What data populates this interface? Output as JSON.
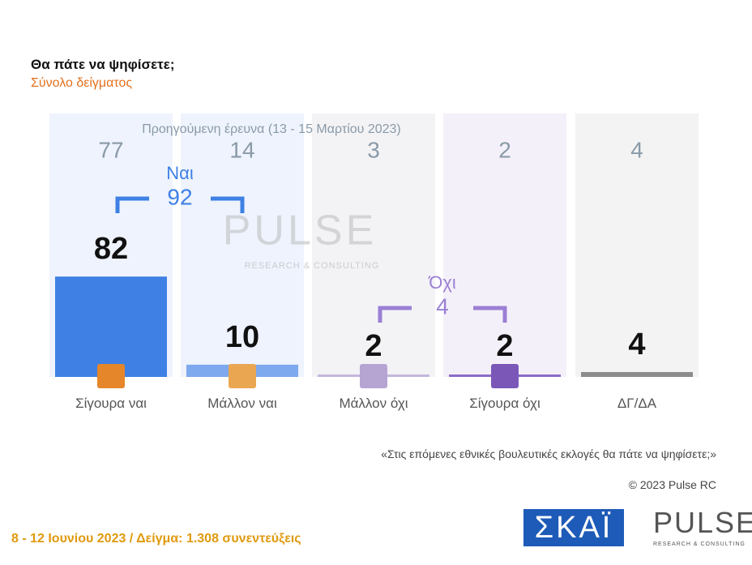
{
  "chart_data": {
    "type": "bar",
    "title": "Θα πάτε να ψηφίσετε;",
    "subtitle": "Σύνολο δείγματος",
    "categories": [
      "Σίγουρα ναι",
      "Μάλλον ναι",
      "Μάλλον όχι",
      "Σίγουρα όχι",
      "ΔΓ/ΔΑ"
    ],
    "values": [
      82,
      10,
      2,
      2,
      4
    ],
    "colors": [
      "#3f80e4",
      "#7ea9ee",
      "#c4b6de",
      "#8d6cc6",
      "#8c8c8c"
    ],
    "previous_label": "Προηγούμενη έρευνα  (13 - 15 Μαρτίου 2023)",
    "previous_values": [
      77,
      14,
      3,
      2,
      4
    ],
    "groups": [
      {
        "name": "Ναι",
        "value": 92,
        "color": "#3f80e4"
      },
      {
        "name": "Όχι",
        "value": 4,
        "color": "#9b7fd4"
      }
    ],
    "ylim": [
      0,
      100
    ],
    "question": "«Στις επόμενες εθνικές βουλευτικές εκλογές θα πάτε να ψηφίσετε;»",
    "copyright": "© 2023 Pulse RC",
    "footer": "8 - 12 Ιουνίου 2023  /  Δείγμα:  1.308 συνεντεύξεις",
    "logo_skai": "ΣΚΑΪ",
    "logo_pulse": "PULSE",
    "logo_pulse_sub": "RESEARCH & CONSULTING"
  }
}
